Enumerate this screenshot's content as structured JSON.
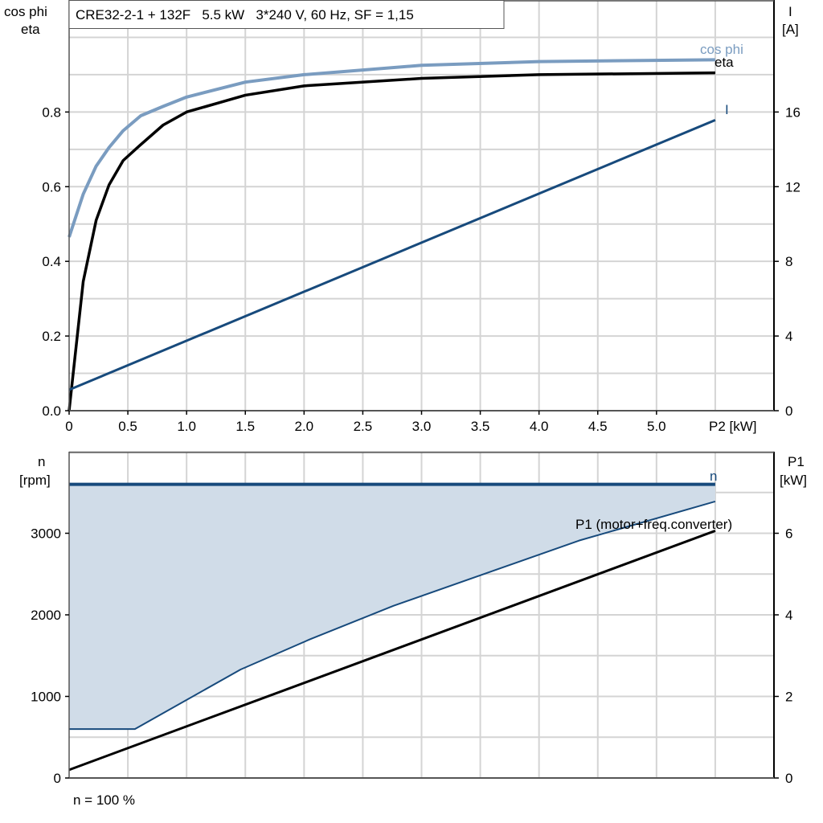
{
  "chart_data": [
    {
      "type": "line",
      "title": "CRE32-2-1 + 132F   5.5 kW   3*240 V, 60 Hz, SF = 1,15",
      "xlabel": "P2 [kW]",
      "ylabel_left": [
        "cos phi",
        "eta"
      ],
      "ylabel_right": [
        "I",
        "[A]"
      ],
      "xlim": [
        0,
        6
      ],
      "ylim_left": [
        0,
        1.1
      ],
      "ylim_right": [
        0,
        22
      ],
      "x_ticks": [
        "0",
        "0.5",
        "1.0",
        "1.5",
        "2.0",
        "2.5",
        "3.0",
        "3.5",
        "4.0",
        "4.5",
        "5.0"
      ],
      "y_ticks_left": [
        "0.0",
        "0.2",
        "0.4",
        "0.6",
        "0.8"
      ],
      "y_ticks_right": [
        "0",
        "4",
        "8",
        "12",
        "16"
      ],
      "grid": true,
      "series": [
        {
          "name": "cos phi",
          "axis": "left",
          "color": "#7a9cc0",
          "x": [
            0,
            0.12,
            0.23,
            0.34,
            0.46,
            0.61,
            0.8,
            1.0,
            1.5,
            2.0,
            3.0,
            4.0,
            5.5
          ],
          "y": [
            0.465,
            0.58,
            0.655,
            0.705,
            0.75,
            0.79,
            0.815,
            0.84,
            0.88,
            0.9,
            0.925,
            0.935,
            0.94
          ]
        },
        {
          "name": "eta",
          "axis": "left",
          "color": "#000000",
          "x": [
            0,
            0.12,
            0.23,
            0.34,
            0.46,
            0.6,
            0.8,
            1.0,
            1.5,
            2.0,
            3.0,
            4.0,
            5.5
          ],
          "y": [
            0,
            0.346,
            0.51,
            0.605,
            0.67,
            0.71,
            0.765,
            0.8,
            0.845,
            0.87,
            0.89,
            0.9,
            0.905
          ]
        },
        {
          "name": "I",
          "axis": "right",
          "color": "#174a7c",
          "x": [
            0,
            5.5
          ],
          "y": [
            1.12,
            15.57
          ]
        }
      ]
    },
    {
      "type": "line",
      "xlim": [
        0,
        6
      ],
      "ylabel_left": [
        "n",
        "[rpm]"
      ],
      "ylabel_right": [
        "P1",
        "[kW]"
      ],
      "ylim_left": [
        0,
        4000
      ],
      "ylim_right": [
        0,
        8
      ],
      "y_ticks_left": [
        "0",
        "1000",
        "2000",
        "3000"
      ],
      "y_ticks_right": [
        "0",
        "2",
        "4",
        "6"
      ],
      "grid": true,
      "series": [
        {
          "name": "n",
          "axis": "left",
          "color": "#174a7c",
          "x": [
            0,
            5.5
          ],
          "y": [
            3600,
            3600
          ]
        },
        {
          "axis": "left",
          "color": "#174a7c",
          "x": [
            0,
            0.56,
            1.46,
            2.05,
            2.76,
            4.34,
            5.5
          ],
          "y": [
            600,
            600,
            1330,
            1700,
            2110,
            2910,
            3390
          ]
        },
        {
          "name": "P1 (motor+freq.converter)",
          "axis": "right",
          "color": "#000000",
          "x": [
            0,
            5.5
          ],
          "y": [
            0.2,
            6.06
          ]
        }
      ],
      "fill_color": "#d0dce8",
      "annotation": "n = 100 %"
    }
  ]
}
